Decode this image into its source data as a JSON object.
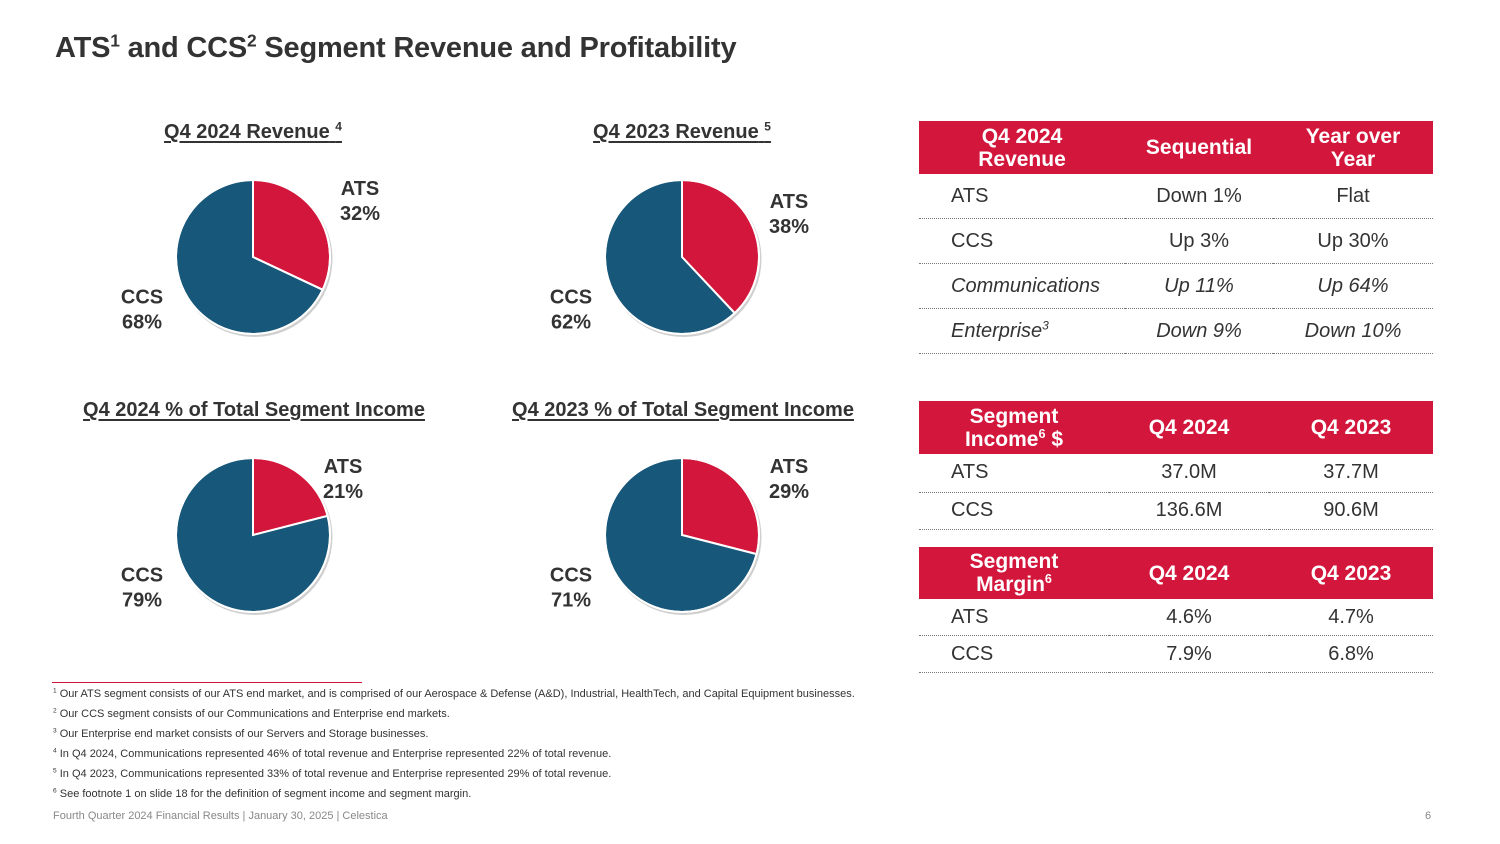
{
  "title": {
    "main_a": "ATS",
    "sup_a": "1",
    "main_b": " and CCS",
    "sup_b": "2",
    "main_c": " Segment Revenue and Profitability"
  },
  "chart_data": [
    {
      "type": "pie",
      "title": "Q4 2024 Revenue",
      "title_sup": "4",
      "categories": [
        "ATS",
        "CCS"
      ],
      "values": [
        32,
        68
      ],
      "labels": [
        "32%",
        "68%"
      ],
      "colors": [
        "#d3163b",
        "#17577a"
      ]
    },
    {
      "type": "pie",
      "title": "Q4 2023 Revenue",
      "title_sup": "5",
      "categories": [
        "ATS",
        "CCS"
      ],
      "values": [
        38,
        62
      ],
      "labels": [
        "38%",
        "62%"
      ],
      "colors": [
        "#d3163b",
        "#17577a"
      ]
    },
    {
      "type": "pie",
      "title": "Q4 2024 % of Total Segment Income",
      "title_sup": "",
      "categories": [
        "ATS",
        "CCS"
      ],
      "values": [
        21,
        79
      ],
      "labels": [
        "21%",
        "79%"
      ],
      "colors": [
        "#d3163b",
        "#17577a"
      ]
    },
    {
      "type": "pie",
      "title": "Q4 2023 % of Total Segment Income",
      "title_sup": "",
      "categories": [
        "ATS",
        "CCS"
      ],
      "values": [
        29,
        71
      ],
      "labels": [
        "29%",
        "71%"
      ],
      "colors": [
        "#d3163b",
        "#17577a"
      ]
    }
  ],
  "revenue_table": {
    "headers": [
      "Q4 2024 Revenue",
      "Sequential",
      "Year over Year"
    ],
    "rows": [
      {
        "label": "ATS",
        "sup": "",
        "c1": "Down 1%",
        "c2": "Flat",
        "italic": false
      },
      {
        "label": "CCS",
        "sup": "",
        "c1": "Up 3%",
        "c2": "Up 30%",
        "italic": false
      },
      {
        "label": "Communications",
        "sup": "",
        "c1": "Up 11%",
        "c2": "Up 64%",
        "italic": true
      },
      {
        "label": "Enterprise",
        "sup": "3",
        "c1": "Down 9%",
        "c2": "Down 10%",
        "italic": true
      }
    ]
  },
  "income_table": {
    "h0_a": "Segment",
    "h0_b": "Income",
    "h0_sup": "6",
    "h0_c": " $",
    "headers": [
      "Q4 2024",
      "Q4 2023"
    ],
    "rows": [
      {
        "label": "ATS",
        "c1": "37.0M",
        "c2": "37.7M"
      },
      {
        "label": "CCS",
        "c1": "136.6M",
        "c2": "90.6M"
      }
    ]
  },
  "margin_table": {
    "h0_a": "Segment",
    "h0_b": "Margin",
    "h0_sup": "6",
    "headers": [
      "Q4 2024",
      "Q4 2023"
    ],
    "rows": [
      {
        "label": "ATS",
        "c1": "4.6%",
        "c2": "4.7%"
      },
      {
        "label": "CCS",
        "c1": "7.9%",
        "c2": "6.8%"
      }
    ]
  },
  "footnotes": [
    {
      "num": "1",
      "text": "Our ATS segment consists of our ATS end market, and is comprised of our Aerospace & Defense (A&D), Industrial, HealthTech, and Capital Equipment businesses."
    },
    {
      "num": "2",
      "text": "Our CCS segment consists of our Communications and Enterprise end markets."
    },
    {
      "num": "3",
      "text": "Our Enterprise end market consists of our Servers and Storage businesses."
    },
    {
      "num": "4",
      "text": "In Q4 2024, Communications represented 46% of total revenue and Enterprise represented 22% of total revenue."
    },
    {
      "num": "5",
      "text": "In Q4 2023, Communications represented 33% of total revenue and Enterprise represented 29% of total revenue."
    },
    {
      "num": "6",
      "text": "See footnote 1 on slide 18 for the definition of segment income and segment margin."
    }
  ],
  "footer": "Fourth Quarter 2024 Financial Results | January 30, 2025 | Celestica",
  "page_number": "6"
}
